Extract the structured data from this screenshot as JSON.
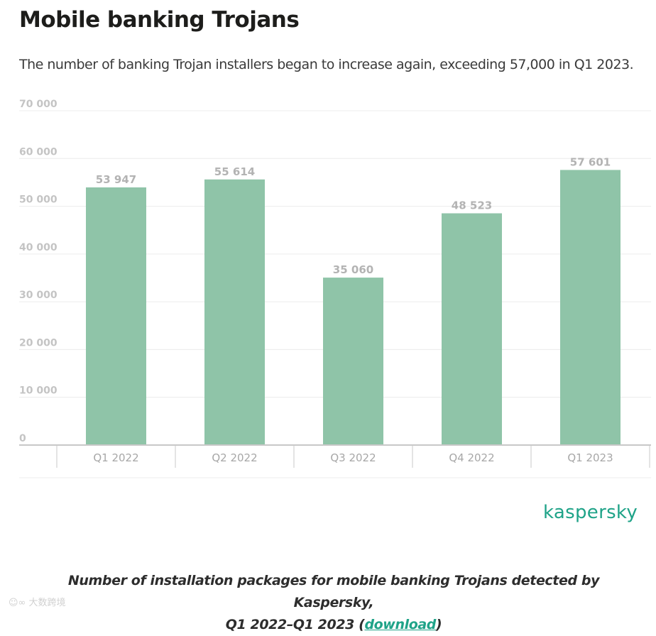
{
  "header": {
    "title": "Mobile banking Trojans",
    "subtitle": "The number of banking Trojan installers began to increase again, exceeding 57,000 in Q1 2023."
  },
  "chart_data": {
    "type": "bar",
    "categories": [
      "Q1 2022",
      "Q2 2022",
      "Q3 2022",
      "Q4 2022",
      "Q1 2023"
    ],
    "values": [
      53947,
      55614,
      35060,
      48523,
      57601
    ],
    "value_labels": [
      "53 947",
      "55 614",
      "35 060",
      "48 523",
      "57 601"
    ],
    "ylim": [
      0,
      70000
    ],
    "yticks": [
      0,
      10000,
      20000,
      30000,
      40000,
      50000,
      60000,
      70000
    ],
    "ytick_labels": [
      "0",
      "10 000",
      "20 000",
      "30 000",
      "40 000",
      "50 000",
      "60 000",
      "70 000"
    ],
    "grid": true,
    "legend": "none",
    "colors": {
      "bar": "#8fc4a8",
      "grid": "#ececec",
      "axis": "#c8c8c8"
    }
  },
  "brand": {
    "name": "kaspersky",
    "color": "#1fa388"
  },
  "caption": {
    "line1": "Number of installation packages for mobile banking Trojans detected by Kaspersky,",
    "line2_prefix": "Q1 2022–Q1 2023 (",
    "link": "download",
    "line2_suffix": ")"
  },
  "watermark": {
    "text": "大数跨境"
  }
}
